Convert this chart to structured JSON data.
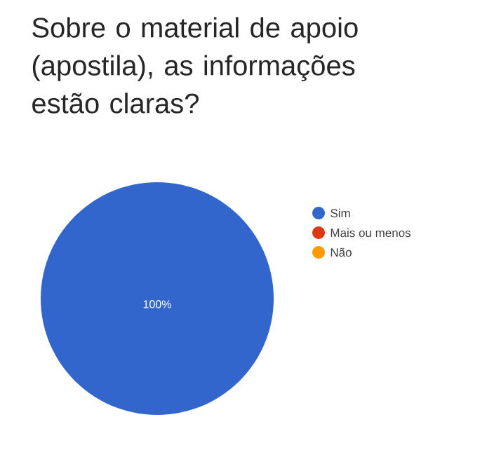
{
  "chart_data": {
    "type": "pie",
    "title": "Sobre o material de apoio (apostila), as informações estão claras?",
    "categories": [
      "Sim",
      "Mais ou menos",
      "Não"
    ],
    "values": [
      100,
      0,
      0
    ],
    "colors": [
      "#3366cc",
      "#dc3912",
      "#ff9900"
    ],
    "value_labels": [
      "100%",
      null,
      null
    ],
    "legend": "right"
  }
}
